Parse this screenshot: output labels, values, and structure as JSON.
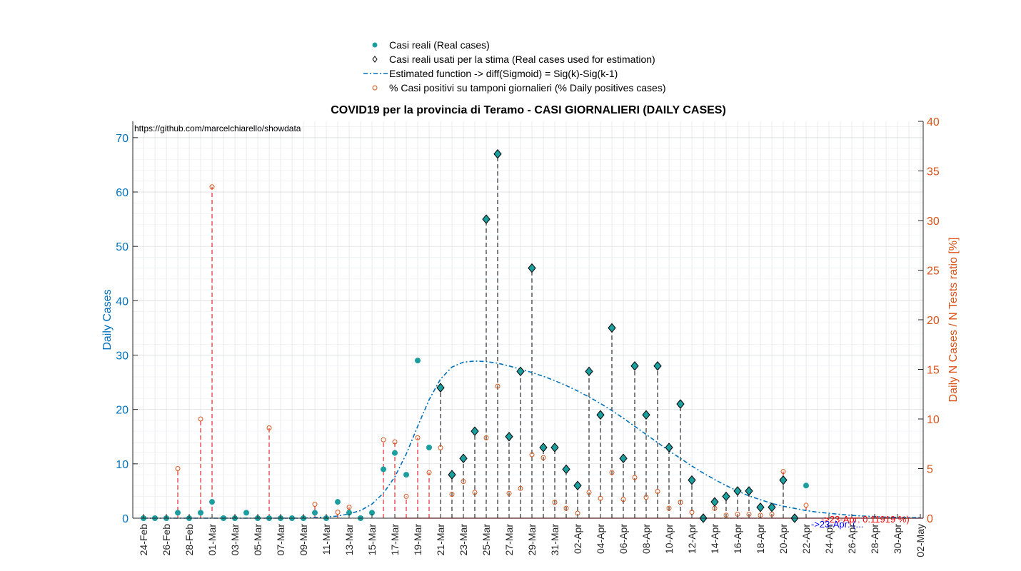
{
  "chart_data": {
    "type": "scatter",
    "title": "COVID19 per la provincia di Teramo - CASI GIORNALIERI (DAILY CASES)",
    "source_note": "https://github.com/marcelchiarello/showdata",
    "ylabel_left": "Daily Cases",
    "ylabel_right": "Daily N Cases / N Tests ratio [%]",
    "ylim_left": [
      0,
      73
    ],
    "ylim_right": [
      0,
      40
    ],
    "yticks_left": [
      "0",
      "10",
      "20",
      "30",
      "40",
      "50",
      "60",
      "70"
    ],
    "yticks_right": [
      "0",
      "5",
      "10",
      "15",
      "20",
      "25",
      "30",
      "35",
      "40"
    ],
    "grid": true,
    "legend_position": "top",
    "colors": {
      "real": "#1a9e9e",
      "estimate": "#0072bd",
      "ratio": "#d95319",
      "marker_edge": "#000000",
      "forecast_red": "#ff0000",
      "forecast_blue": "#0000ff"
    },
    "x_start": "24-Feb",
    "x_tick_labels": [
      "24-Feb",
      "26-Feb",
      "28-Feb",
      "01-Mar",
      "03-Mar",
      "05-Mar",
      "07-Mar",
      "09-Mar",
      "11-Mar",
      "13-Mar",
      "15-Mar",
      "17-Mar",
      "19-Mar",
      "21-Mar",
      "23-Mar",
      "25-Mar",
      "27-Mar",
      "29-Mar",
      "31-Mar",
      "02-Apr",
      "04-Apr",
      "06-Apr",
      "08-Apr",
      "10-Apr",
      "12-Apr",
      "14-Apr",
      "16-Apr",
      "18-Apr",
      "20-Apr",
      "22-Apr",
      "24-Apr",
      "26-Apr",
      "28-Apr",
      "30-Apr",
      "02-May"
    ],
    "x_minor_ticks_per_day": true,
    "series": [
      {
        "name": "Casi reali (Real cases)",
        "values": [
          0,
          0,
          0,
          1,
          0,
          1,
          3,
          0,
          0,
          1,
          0,
          0,
          0,
          0,
          0,
          1,
          0,
          3,
          1,
          0,
          1,
          9,
          12,
          8,
          29,
          13,
          24,
          8,
          11,
          16,
          55,
          67,
          15,
          27,
          46,
          13,
          13,
          9,
          6,
          27,
          19,
          35,
          11,
          28,
          19,
          28,
          13,
          21,
          7,
          0,
          3,
          4,
          5,
          5,
          2,
          2,
          7,
          0,
          6
        ]
      },
      {
        "name": "Casi reali usati per la stima (Real cases used for estimation)",
        "start_index": 26,
        "values": [
          24,
          8,
          11,
          16,
          55,
          67,
          15,
          27,
          46,
          13,
          13,
          9,
          6,
          27,
          19,
          35,
          11,
          28,
          19,
          28,
          13,
          21,
          7,
          0,
          3,
          4,
          5,
          5,
          2,
          2,
          7,
          0
        ]
      },
      {
        "name": "Estimated function -> diff(Sigmoid) = Sig(k)-Sig(k-1)",
        "values": [
          0,
          0,
          0,
          0,
          0,
          0,
          0,
          0,
          0,
          0,
          0,
          0,
          0,
          0,
          0,
          0.1,
          0.2,
          0.4,
          0.8,
          1.4,
          2.6,
          4.6,
          7.6,
          11.8,
          16.9,
          21.8,
          25.6,
          27.8,
          28.7,
          28.9,
          28.8,
          28.5,
          28.0,
          27.4,
          26.8,
          26.1,
          25.3,
          24.4,
          23.4,
          22.3,
          21.1,
          19.8,
          18.4,
          16.9,
          15.4,
          13.9,
          12.4,
          11.0,
          9.6,
          8.3,
          7.1,
          6.0,
          5.0,
          4.1,
          3.4,
          2.7,
          2.2,
          1.8,
          1.4,
          1.1,
          0.9,
          0.7,
          0.5,
          0.4,
          0.3,
          0.2,
          0.15,
          0.1,
          0.08
        ]
      },
      {
        "name": "% Casi positivi su tamponi giornalieri (% Daily positives cases)",
        "values": [
          null,
          null,
          null,
          5.0,
          null,
          10.0,
          33.4,
          null,
          null,
          null,
          null,
          9.1,
          null,
          null,
          null,
          1.4,
          null,
          0.6,
          1.1,
          null,
          null,
          7.9,
          7.7,
          2.2,
          8.1,
          4.6,
          7.1,
          2.4,
          3.7,
          2.6,
          8.1,
          13.3,
          2.5,
          3.0,
          6.4,
          6.1,
          1.6,
          1.0,
          0.5,
          2.6,
          2.0,
          4.6,
          1.9,
          4.1,
          2.1,
          2.7,
          1.0,
          1.6,
          0.6,
          null,
          1.0,
          0.3,
          0.4,
          0.4,
          0.3,
          0.4,
          4.7,
          null,
          1.3
        ]
      }
    ],
    "forecast_labels": [
      "->23-Apr: 0.11919 %)",
      "->23-Apr: (... "
    ]
  },
  "legend": {
    "real": "Casi reali (Real cases)",
    "used": "Casi reali usati per la stima (Real cases used for estimation)",
    "estimate": "Estimated function -> diff(Sigmoid) = Sig(k)-Sig(k-1)",
    "ratio": "% Casi positivi su tamponi giornalieri (% Daily positives cases)"
  }
}
